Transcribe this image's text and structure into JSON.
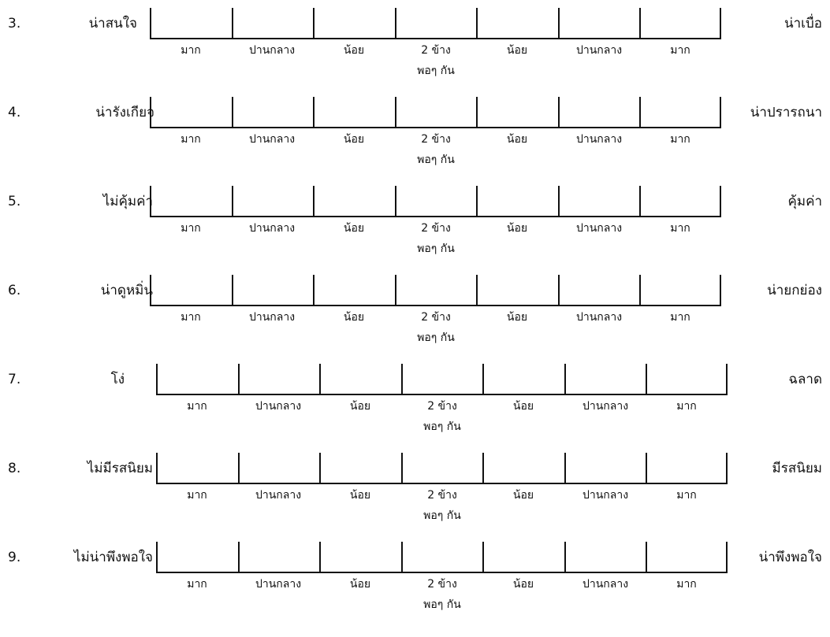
{
  "scale_labels": [
    "มาก",
    "ปานกลาง",
    "น้อย",
    "2 ข้าง",
    "น้อย",
    "ปานกลาง",
    "มาก"
  ],
  "center_sublabel": "พอๆ กัน",
  "items": [
    {
      "number": "3.",
      "left": "น่าสนใจ",
      "right": "น่าเบื่อ"
    },
    {
      "number": "4.",
      "left": "น่ารังเกียจ",
      "right": "น่าปรารถนา"
    },
    {
      "number": "5.",
      "left": "ไม่คุ้มค่า",
      "right": "คุ้มค่า"
    },
    {
      "number": "6.",
      "left": "น่าดูหมิ่น",
      "right": "น่ายกย่อง"
    },
    {
      "number": "7.",
      "left": "โง่",
      "right": "ฉลาด"
    },
    {
      "number": "8.",
      "left": "ไม่มีรสนิยม",
      "right": "มีรสนิยม"
    },
    {
      "number": "9.",
      "left": "ไม่น่าพึงพอใจ",
      "right": "น่าพึงพอใจ"
    }
  ]
}
